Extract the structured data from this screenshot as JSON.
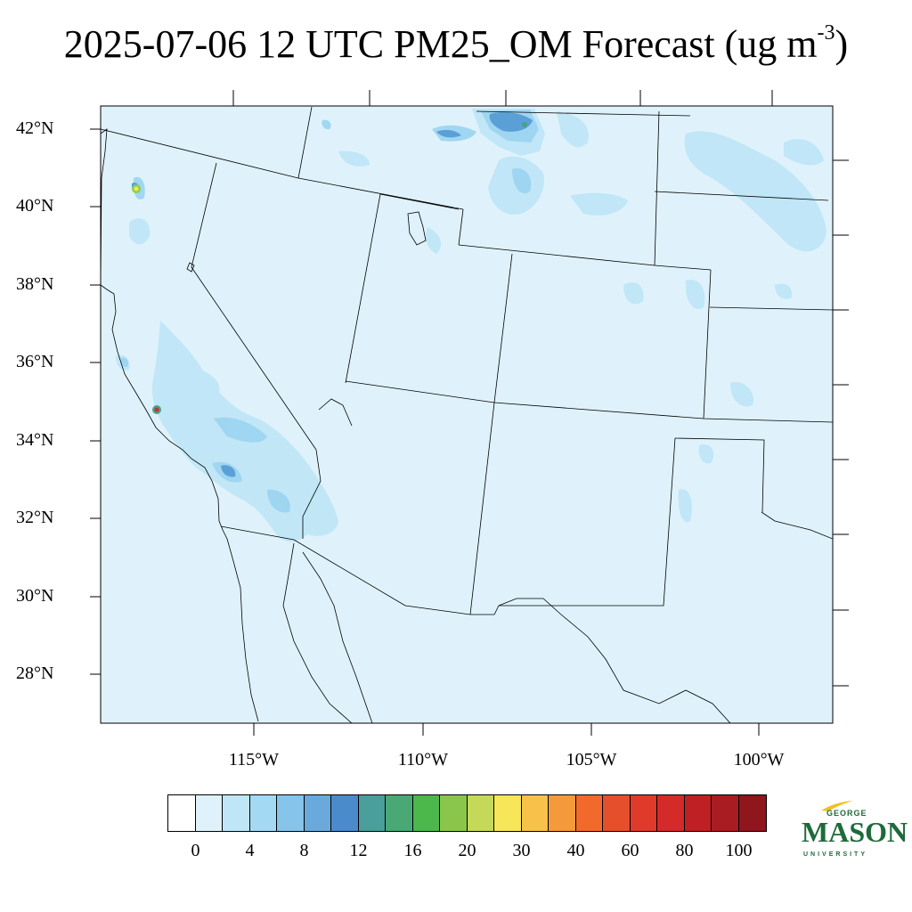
{
  "title": {
    "main": "2025-07-06 12 UTC PM25_OM Forecast (ug m",
    "sup": "-3",
    "close": ")"
  },
  "map": {
    "background_color": "#dff2fb",
    "border_color": "#000000",
    "lat_labels": [
      "42°N",
      "40°N",
      "38°N",
      "36°N",
      "34°N",
      "32°N",
      "30°N",
      "28°N"
    ],
    "lon_labels": [
      "115°W",
      "110°W",
      "105°W",
      "100°W"
    ],
    "hotspot_colors": [
      "#bfe6f7",
      "#9dd5f1",
      "#83c2ea",
      "#4a8fcb",
      "#4aa08a",
      "#8ccf4e",
      "#f7e65a",
      "#f08a2c",
      "#d42a2a"
    ]
  },
  "colorbar": {
    "colors": [
      "#ffffff",
      "#dff2fb",
      "#bfe6f7",
      "#a4d9f4",
      "#86c4ea",
      "#6aa9dc",
      "#4a8bcb",
      "#4a9e9c",
      "#4aa874",
      "#4cb84c",
      "#8bc64c",
      "#c4d95a",
      "#f7e65a",
      "#f8c14a",
      "#f59a3a",
      "#f16a2c",
      "#e64f2c",
      "#e03a2a",
      "#d42a2a",
      "#be2024",
      "#a81c22",
      "#8e161c"
    ],
    "labels": [
      "0",
      "4",
      "8",
      "12",
      "16",
      "20",
      "30",
      "40",
      "60",
      "80",
      "100"
    ]
  },
  "logo": {
    "line1": "GEORGE",
    "line2": "MASON",
    "line3": "UNIVERSITY",
    "color": "#1d6b3a",
    "accent": "#f2c01e"
  }
}
